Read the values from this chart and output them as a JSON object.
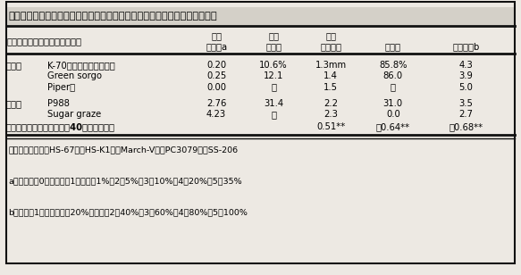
{
  "title": "表１．ソルガムおよびスーダングラス品種の麦角病抵抗性と関連する諸性質",
  "bg_color": "#ede9e3",
  "rows": [
    {
      "group": "抵抗性",
      "name": "K-70（キングソルゴー）",
      "v1": "0.20",
      "v2": "10.6%",
      "v3": "1.3mm",
      "v4": "85.8%",
      "v5": "4.3"
    },
    {
      "group": "",
      "name": "Green sorgo",
      "v1": "0.25",
      "v2": "12.1",
      "v3": "1.4",
      "v4": "86.0",
      "v5": "3.9"
    },
    {
      "group": "",
      "name": "Piper＊",
      "v1": "0.00",
      "v2": "－",
      "v3": "1.5",
      "v4": "－",
      "v5": "5.0"
    },
    {
      "group": "罹病性",
      "name": "P988",
      "v1": "2.76",
      "v2": "31.4",
      "v3": "2.2",
      "v4": "31.0",
      "v5": "3.5"
    },
    {
      "group": "",
      "name": "Sugar graze",
      "v1": "4.23",
      "v2": "－",
      "v3": "2.3",
      "v4": "0.0",
      "v5": "2.7"
    }
  ],
  "corr_row": {
    "label": "圃場発病度との相関係数（40品種・系統）",
    "v3": "0.51**",
    "v4": "－0.64**",
    "v5": "－0.68**"
  },
  "footnotes": [
    "他の抵抗性品種：HS-67＊，HS-K1＊，March-V＊，PC3079＊，SS-206",
    "a：発病度　0：無発病、1：麦角率1%、2：5%、3：10%、4：20%、5：35%",
    "b：被度　1：種子表面の20%が護穎、2：40%、3：60%、4：80%、5：100%"
  ],
  "col_x": {
    "group": 0.01,
    "name": 0.09,
    "v1": 0.415,
    "v2": 0.525,
    "v3": 0.635,
    "v4": 0.755,
    "v5": 0.895
  },
  "font_size_title": 8.2,
  "font_size_header": 7.2,
  "font_size_data": 7.2,
  "font_size_footnote": 6.8,
  "title_bg": "#d4d0c8",
  "line_color": "#111111"
}
